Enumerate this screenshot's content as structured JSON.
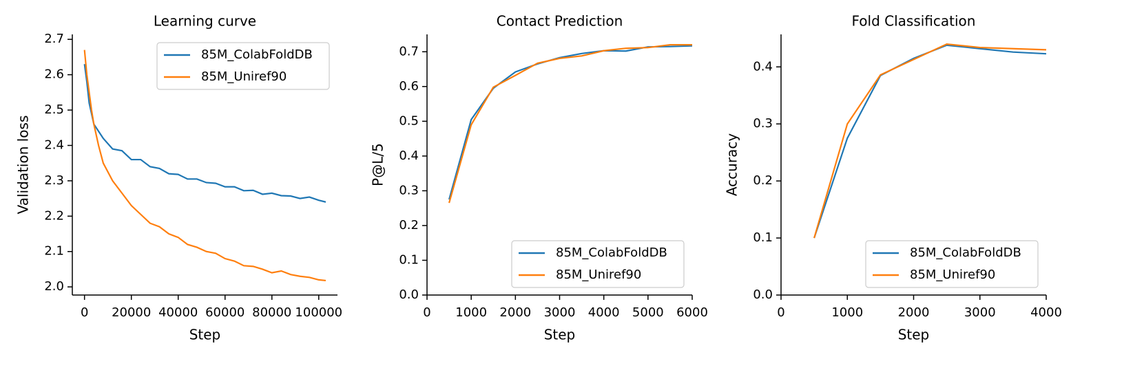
{
  "chart_data": [
    {
      "type": "line",
      "title": "Learning curve",
      "xlabel": "Step",
      "ylabel": "Validation loss",
      "x": [
        0,
        1000,
        2000,
        3000,
        4000,
        6000,
        8000,
        12000,
        16000,
        20000,
        24000,
        28000,
        32000,
        36000,
        40000,
        44000,
        48000,
        52000,
        56000,
        60000,
        64000,
        68000,
        72000,
        76000,
        80000,
        84000,
        88000,
        92000,
        96000,
        100000,
        103000
      ],
      "series": [
        {
          "name": "85M_ColabFoldDB",
          "color": "#1f77b4",
          "values": [
            2.63,
            2.58,
            2.52,
            2.49,
            2.46,
            2.44,
            2.42,
            2.39,
            2.385,
            2.36,
            2.36,
            2.34,
            2.335,
            2.32,
            2.318,
            2.305,
            2.305,
            2.295,
            2.293,
            2.283,
            2.283,
            2.272,
            2.273,
            2.262,
            2.265,
            2.258,
            2.257,
            2.25,
            2.254,
            2.245,
            2.24
          ]
        },
        {
          "name": "85M_Uniref90",
          "color": "#ff7f0e",
          "values": [
            2.67,
            2.6,
            2.55,
            2.5,
            2.46,
            2.4,
            2.35,
            2.3,
            2.265,
            2.23,
            2.205,
            2.18,
            2.17,
            2.15,
            2.14,
            2.12,
            2.112,
            2.1,
            2.095,
            2.08,
            2.073,
            2.06,
            2.058,
            2.05,
            2.04,
            2.045,
            2.035,
            2.03,
            2.027,
            2.02,
            2.018
          ]
        }
      ],
      "xlim": [
        -5200,
        108000
      ],
      "ylim": [
        1.977,
        2.714
      ],
      "xticks": [
        0,
        20000,
        40000,
        60000,
        80000,
        100000
      ],
      "yticks": [
        {
          "value": 2,
          "label": "2.0"
        },
        2.1,
        2.2,
        2.3,
        2.4,
        2.5,
        2.6,
        2.7
      ],
      "legend": "upper right"
    },
    {
      "type": "line",
      "title": "Contact Prediction",
      "xlabel": "Step",
      "ylabel": "P@L/5",
      "x": [
        500,
        1000,
        1500,
        2000,
        2500,
        3000,
        3500,
        4000,
        4500,
        5000,
        5500,
        6000
      ],
      "series": [
        {
          "name": "85M_ColabFoldDB",
          "color": "#1f77b4",
          "values": [
            0.275,
            0.505,
            0.595,
            0.642,
            0.665,
            0.683,
            0.695,
            0.703,
            0.702,
            0.714,
            0.715,
            0.717
          ]
        },
        {
          "name": "85M_Uniref90",
          "color": "#ff7f0e",
          "values": [
            0.265,
            0.49,
            0.598,
            0.632,
            0.667,
            0.681,
            0.688,
            0.703,
            0.71,
            0.712,
            0.72,
            0.72
          ]
        }
      ],
      "xlim": [
        0,
        6000
      ],
      "ylim": [
        0,
        0.75
      ],
      "xticks": [
        0,
        1000,
        2000,
        3000,
        4000,
        5000,
        6000
      ],
      "yticks": [
        {
          "value": 0,
          "label": "0.0"
        },
        0.1,
        0.2,
        0.3,
        0.4,
        0.5,
        0.6,
        0.7
      ],
      "legend": "lower right"
    },
    {
      "type": "line",
      "title": "Fold Classification",
      "xlabel": "Step",
      "ylabel": "Accuracy",
      "x": [
        500,
        1000,
        1500,
        2000,
        2500,
        3000,
        3500,
        4000
      ],
      "series": [
        {
          "name": "85M_ColabFoldDB",
          "color": "#1f77b4",
          "values": [
            0.1,
            0.275,
            0.385,
            0.415,
            0.438,
            0.432,
            0.426,
            0.423
          ]
        },
        {
          "name": "85M_Uniref90",
          "color": "#ff7f0e",
          "values": [
            0.1,
            0.3,
            0.386,
            0.413,
            0.44,
            0.434,
            0.432,
            0.43
          ]
        }
      ],
      "xlim": [
        0,
        4000
      ],
      "ylim": [
        0,
        0.457
      ],
      "xticks": [
        0,
        1000,
        2000,
        3000,
        4000
      ],
      "yticks": [
        {
          "value": 0,
          "label": "0.0"
        },
        0.1,
        0.2,
        0.3,
        0.4
      ],
      "legend": "lower right"
    }
  ]
}
